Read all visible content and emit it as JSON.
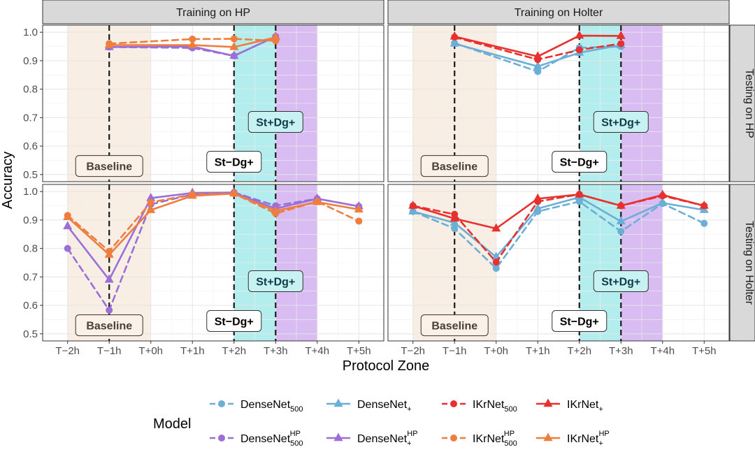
{
  "chart_data": {
    "type": "line",
    "x_label": "Protocol Zone",
    "y_label": "Accuracy",
    "x_ticks": [
      "T−2h",
      "T−1h",
      "T+0h",
      "T+1h",
      "T+2h",
      "T+3h",
      "T+4h",
      "T+5h"
    ],
    "column_strips": [
      "Training on HP",
      "Training on Holter"
    ],
    "row_strips": [
      "Testing on HP",
      "Testing on Holter"
    ],
    "legend_title": "Model",
    "legend": [
      {
        "id": "dn500",
        "base": "DenseNet",
        "sub": "500",
        "sup": "",
        "color": "#6baed6",
        "shape": "circle",
        "dash": "dashed"
      },
      {
        "id": "dnp",
        "base": "DenseNet",
        "sub": "+",
        "sup": "",
        "color": "#6baed6",
        "shape": "triangle",
        "dash": "solid"
      },
      {
        "id": "ik500",
        "base": "IKrNet",
        "sub": "500",
        "sup": "",
        "color": "#e8312f",
        "shape": "circle",
        "dash": "dashed"
      },
      {
        "id": "ikp",
        "base": "IKrNet",
        "sub": "+",
        "sup": "",
        "color": "#e8312f",
        "shape": "triangle",
        "dash": "solid"
      },
      {
        "id": "dn500hp",
        "base": "DenseNet",
        "sub": "500",
        "sup": "HP",
        "color": "#9b6fd8",
        "shape": "circle",
        "dash": "dashed"
      },
      {
        "id": "dnphp",
        "base": "DenseNet",
        "sub": "+",
        "sup": "HP",
        "color": "#9b6fd8",
        "shape": "triangle",
        "dash": "solid"
      },
      {
        "id": "ik500hp",
        "base": "IKrNet",
        "sub": "500",
        "sup": "HP",
        "color": "#ee7d3e",
        "shape": "circle",
        "dash": "dashed"
      },
      {
        "id": "ikphp",
        "base": "IKrNet",
        "sub": "+",
        "sup": "HP",
        "color": "#ee7d3e",
        "shape": "triangle",
        "dash": "solid"
      }
    ],
    "zones": [
      {
        "from": -2,
        "to": 0,
        "color": "#f8eee4"
      },
      {
        "from": 2,
        "to": 3,
        "color": "#b3eded"
      },
      {
        "from": 3,
        "to": 4,
        "color": "#d8bcf2"
      }
    ],
    "vlines": [
      -1,
      2,
      3
    ],
    "panels": [
      {
        "row": 0,
        "col": 0,
        "ylim": [
          0.475,
          1.025
        ],
        "yticks": [
          0.5,
          0.6,
          0.7,
          0.8,
          0.9,
          1.0
        ],
        "annotations": [
          {
            "text": "Baseline",
            "x": -1.0,
            "y": 0.53,
            "type": "baseline"
          },
          {
            "text": "St−Dg+",
            "x": 2.0,
            "y": 0.545,
            "type": "stdgminus"
          },
          {
            "text": "St+Dg+",
            "x": 3.0,
            "y": 0.685,
            "type": "stdgplus"
          }
        ],
        "series": [
          {
            "id": "dn500hp",
            "x": [
              -1,
              1,
              2,
              3
            ],
            "y": [
              0.948,
              0.945,
              0.917,
              0.985
            ]
          },
          {
            "id": "dnphp",
            "x": [
              -1,
              1,
              2,
              3
            ],
            "y": [
              0.948,
              0.95,
              0.917,
              0.985
            ]
          },
          {
            "id": "ik500hp",
            "x": [
              -1,
              1,
              2,
              3
            ],
            "y": [
              0.96,
              0.976,
              0.977,
              0.97
            ]
          },
          {
            "id": "ikphp",
            "x": [
              -1,
              1,
              2,
              3
            ],
            "y": [
              0.955,
              0.955,
              0.948,
              0.982
            ]
          }
        ]
      },
      {
        "row": 0,
        "col": 1,
        "ylim": [
          0.475,
          1.025
        ],
        "yticks": [
          0.5,
          0.6,
          0.7,
          0.8,
          0.9,
          1.0
        ],
        "annotations": [
          {
            "text": "Baseline",
            "x": -1.0,
            "y": 0.53,
            "type": "baseline"
          },
          {
            "text": "St−Dg+",
            "x": 2.0,
            "y": 0.545,
            "type": "stdgminus"
          },
          {
            "text": "St+Dg+",
            "x": 3.0,
            "y": 0.685,
            "type": "stdgplus"
          }
        ],
        "series": [
          {
            "id": "dn500",
            "x": [
              -1,
              1,
              2,
              3
            ],
            "y": [
              0.962,
              0.862,
              0.946,
              0.95
            ]
          },
          {
            "id": "dnp",
            "x": [
              -1,
              1,
              2,
              3
            ],
            "y": [
              0.96,
              0.88,
              0.928,
              0.955
            ]
          },
          {
            "id": "ik500",
            "x": [
              -1,
              1,
              2,
              3
            ],
            "y": [
              0.983,
              0.904,
              0.938,
              0.96
            ]
          },
          {
            "id": "ikp",
            "x": [
              -1,
              1,
              2,
              3
            ],
            "y": [
              0.985,
              0.915,
              0.988,
              0.987
            ]
          }
        ]
      },
      {
        "row": 1,
        "col": 0,
        "ylim": [
          0.475,
          1.025
        ],
        "yticks": [
          0.5,
          0.6,
          0.7,
          0.8,
          0.9,
          1.0
        ],
        "annotations": [
          {
            "text": "Baseline",
            "x": -1.0,
            "y": 0.53,
            "type": "baseline"
          },
          {
            "text": "St−Dg+",
            "x": 2.0,
            "y": 0.545,
            "type": "stdgminus"
          },
          {
            "text": "St+Dg+",
            "x": 3.0,
            "y": 0.685,
            "type": "stdgplus"
          }
        ],
        "series": [
          {
            "id": "dn500hp",
            "x": [
              -2,
              -1,
              0,
              1,
              2,
              3,
              4,
              5
            ],
            "y": [
              0.8,
              0.583,
              0.955,
              0.99,
              0.997,
              0.95,
              0.975,
              0.948
            ]
          },
          {
            "id": "dnphp",
            "x": [
              -2,
              -1,
              0,
              1,
              2,
              3,
              4,
              5
            ],
            "y": [
              0.878,
              0.69,
              0.977,
              0.995,
              0.996,
              0.94,
              0.975,
              0.948
            ]
          },
          {
            "id": "ik500hp",
            "x": [
              -2,
              -1,
              0,
              1,
              2,
              3,
              4,
              5
            ],
            "y": [
              0.916,
              0.79,
              0.962,
              0.99,
              0.993,
              0.923,
              0.965,
              0.896
            ]
          },
          {
            "id": "ikphp",
            "x": [
              -2,
              -1,
              0,
              1,
              2,
              3,
              4,
              5
            ],
            "y": [
              0.91,
              0.778,
              0.935,
              0.985,
              0.993,
              0.932,
              0.963,
              0.937
            ]
          }
        ]
      },
      {
        "row": 1,
        "col": 1,
        "ylim": [
          0.475,
          1.025
        ],
        "yticks": [
          0.5,
          0.6,
          0.7,
          0.8,
          0.9,
          1.0
        ],
        "annotations": [
          {
            "text": "Baseline",
            "x": -1.0,
            "y": 0.53,
            "type": "baseline"
          },
          {
            "text": "St−Dg+",
            "x": 2.0,
            "y": 0.545,
            "type": "stdgminus"
          },
          {
            "text": "St+Dg+",
            "x": 3.0,
            "y": 0.685,
            "type": "stdgplus"
          }
        ],
        "series": [
          {
            "id": "dn500",
            "x": [
              -2,
              -1,
              0,
              1,
              2,
              3,
              4,
              5
            ],
            "y": [
              0.93,
              0.87,
              0.73,
              0.93,
              0.965,
              0.86,
              0.958,
              0.888
            ]
          },
          {
            "id": "dnp",
            "x": [
              -2,
              -1,
              0,
              1,
              2,
              3,
              4,
              5
            ],
            "y": [
              0.93,
              0.89,
              0.77,
              0.94,
              0.98,
              0.895,
              0.96,
              0.935
            ]
          },
          {
            "id": "ik500",
            "x": [
              -2,
              -1,
              0,
              1,
              2,
              3,
              4,
              5
            ],
            "y": [
              0.95,
              0.92,
              0.752,
              0.965,
              0.99,
              0.95,
              0.985,
              0.95
            ]
          },
          {
            "id": "ikp",
            "x": [
              -2,
              -1,
              0,
              1,
              2,
              3,
              4,
              5
            ],
            "y": [
              0.95,
              0.905,
              0.87,
              0.975,
              0.99,
              0.95,
              0.988,
              0.95
            ]
          }
        ]
      }
    ]
  }
}
